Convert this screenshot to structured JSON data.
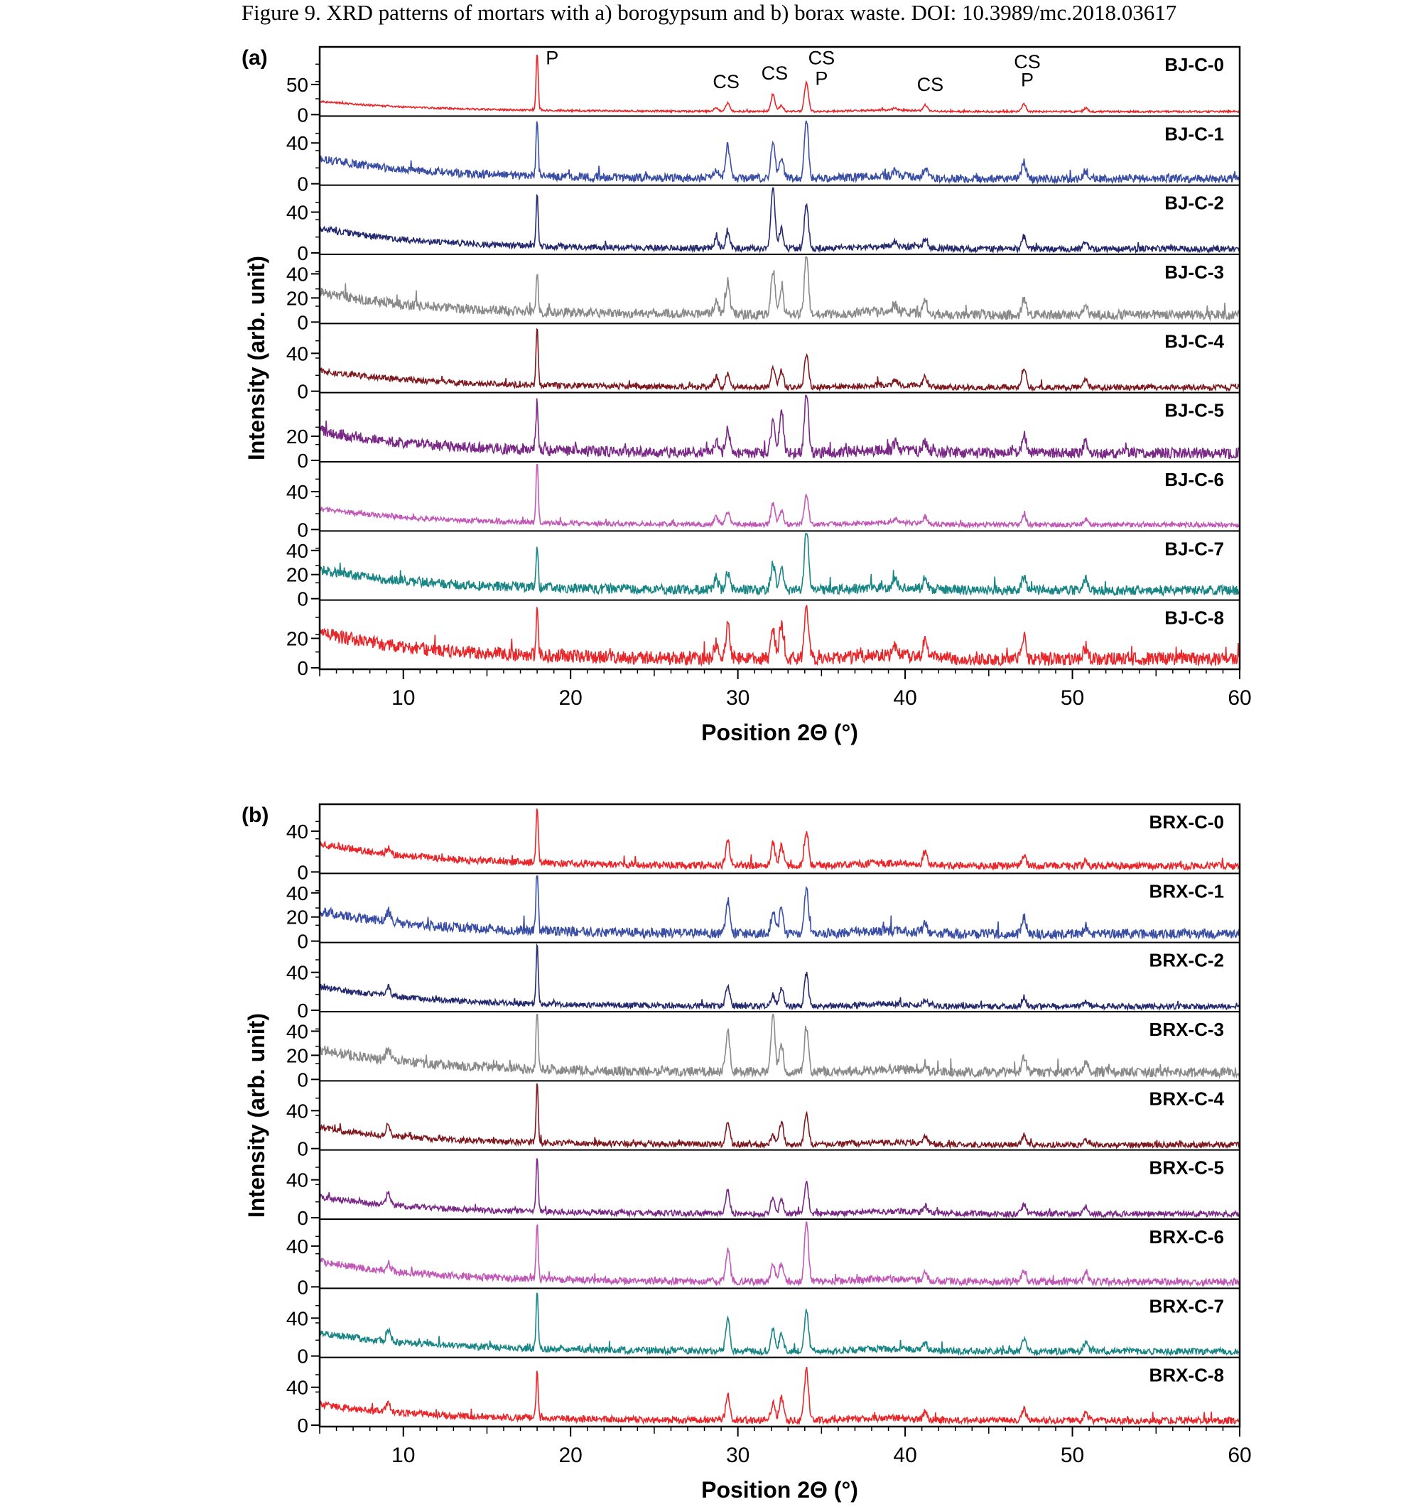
{
  "caption": "Figure 9.    XRD patterns of mortars with a) borogypsum and b) borax waste. DOI: 10.3989/mc.2018.03617",
  "chart_data": [
    {
      "type": "line",
      "panel_label": "(a)",
      "xlabel": "Position 2Θ (°)",
      "ylabel": "Intensity (arb. unit)",
      "xlim": [
        5,
        60
      ],
      "xticks": [
        10,
        20,
        30,
        40,
        50,
        60
      ],
      "grid": false,
      "peaks": [
        18.0,
        28.7,
        29.4,
        32.1,
        32.6,
        34.1,
        39.4,
        41.2,
        47.1,
        50.8
      ],
      "annotations": [
        {
          "text": "P",
          "x": 18.9,
          "y_frac": 0.78
        },
        {
          "text": "CS",
          "x": 29.3,
          "y_frac": 0.42
        },
        {
          "text": "CS",
          "x": 32.2,
          "y_frac": 0.55
        },
        {
          "text": "CS",
          "x": 35.0,
          "y_frac": 0.78
        },
        {
          "text": "P",
          "x": 35.0,
          "y_frac": 0.47
        },
        {
          "text": "CS",
          "x": 41.5,
          "y_frac": 0.38
        },
        {
          "text": "CS",
          "x": 47.3,
          "y_frac": 0.72
        },
        {
          "text": "P",
          "x": 47.3,
          "y_frac": 0.45
        }
      ],
      "series": [
        {
          "name": "BJ-C-0",
          "color": "#e8272b",
          "ymax": 110,
          "yticks": [
            0,
            50
          ],
          "baseline": 5,
          "bg_start": 22,
          "noise": 3,
          "peak_heights": [
            95,
            6,
            14,
            28,
            10,
            48,
            4,
            10,
            12,
            6
          ]
        },
        {
          "name": "BJ-C-1",
          "color": "#3a4fa3",
          "ymax": 65,
          "yticks": [
            0,
            40
          ],
          "baseline": 5,
          "bg_start": 25,
          "noise": 8,
          "peak_heights": [
            55,
            8,
            32,
            38,
            22,
            55,
            5,
            8,
            16,
            8
          ]
        },
        {
          "name": "BJ-C-2",
          "color": "#252a6e",
          "ymax": 65,
          "yticks": [
            0,
            40
          ],
          "baseline": 4,
          "bg_start": 24,
          "noise": 6,
          "peak_heights": [
            50,
            10,
            16,
            62,
            20,
            45,
            4,
            8,
            12,
            8
          ]
        },
        {
          "name": "BJ-C-3",
          "color": "#8a8a8a",
          "ymax": 55,
          "yticks": [
            0,
            20,
            40
          ],
          "baseline": 6,
          "bg_start": 25,
          "noise": 8,
          "peak_heights": [
            30,
            12,
            28,
            38,
            22,
            50,
            6,
            10,
            14,
            8
          ]
        },
        {
          "name": "BJ-C-4",
          "color": "#7e1a1f",
          "ymax": 70,
          "yticks": [
            0,
            40
          ],
          "baseline": 4,
          "bg_start": 22,
          "noise": 6,
          "peak_heights": [
            62,
            10,
            14,
            20,
            18,
            35,
            6,
            10,
            22,
            8
          ]
        },
        {
          "name": "BJ-C-5",
          "color": "#7a2a86",
          "ymax": 55,
          "yticks": [
            0,
            20
          ],
          "baseline": 6,
          "bg_start": 25,
          "noise": 9,
          "peak_heights": [
            40,
            10,
            20,
            28,
            35,
            50,
            6,
            8,
            16,
            10
          ]
        },
        {
          "name": "BJ-C-6",
          "color": "#c15ab7",
          "ymax": 70,
          "yticks": [
            0,
            40
          ],
          "baseline": 5,
          "bg_start": 22,
          "noise": 5,
          "peak_heights": [
            68,
            8,
            14,
            22,
            15,
            32,
            4,
            8,
            10,
            6
          ]
        },
        {
          "name": "BJ-C-7",
          "color": "#1a8585",
          "ymax": 55,
          "yticks": [
            0,
            20,
            40
          ],
          "baseline": 7,
          "bg_start": 24,
          "noise": 8,
          "peak_heights": [
            35,
            10,
            14,
            22,
            20,
            52,
            8,
            10,
            12,
            10
          ]
        },
        {
          "name": "BJ-C-8",
          "color": "#e8272b",
          "ymax": 45,
          "yticks": [
            0,
            20
          ],
          "baseline": 6,
          "bg_start": 24,
          "noise": 9,
          "peak_heights": [
            32,
            10,
            22,
            20,
            24,
            35,
            6,
            12,
            16,
            8
          ]
        }
      ]
    },
    {
      "type": "line",
      "panel_label": "(b)",
      "xlabel": "Position 2Θ (°)",
      "ylabel": "Intensity (arb. unit)",
      "xlim": [
        5,
        60
      ],
      "xticks": [
        10,
        20,
        30,
        40,
        50,
        60
      ],
      "grid": false,
      "peaks": [
        9.1,
        18.0,
        29.4,
        32.1,
        32.6,
        34.1,
        41.2,
        47.1,
        50.8
      ],
      "series": [
        {
          "name": "BRX-C-0",
          "color": "#e8272b",
          "ymax": 65,
          "yticks": [
            0,
            40
          ],
          "baseline": 6,
          "bg_start": 28,
          "noise": 7,
          "peak_heights": [
            6,
            55,
            24,
            22,
            20,
            34,
            14,
            10,
            6
          ]
        },
        {
          "name": "BRX-C-1",
          "color": "#3a4fa3",
          "ymax": 55,
          "yticks": [
            0,
            20,
            40
          ],
          "baseline": 6,
          "bg_start": 25,
          "noise": 8,
          "peak_heights": [
            8,
            55,
            26,
            18,
            20,
            38,
            8,
            14,
            6
          ]
        },
        {
          "name": "BRX-C-2",
          "color": "#252a6e",
          "ymax": 70,
          "yticks": [
            0,
            40
          ],
          "baseline": 4,
          "bg_start": 25,
          "noise": 6,
          "peak_heights": [
            10,
            62,
            22,
            12,
            20,
            34,
            6,
            10,
            6
          ]
        },
        {
          "name": "BRX-C-3",
          "color": "#8a8a8a",
          "ymax": 55,
          "yticks": [
            0,
            20,
            40
          ],
          "baseline": 6,
          "bg_start": 25,
          "noise": 8,
          "peak_heights": [
            10,
            50,
            34,
            48,
            22,
            38,
            6,
            12,
            10
          ]
        },
        {
          "name": "BRX-C-4",
          "color": "#7e1a1f",
          "ymax": 70,
          "yticks": [
            0,
            40
          ],
          "baseline": 4,
          "bg_start": 22,
          "noise": 6,
          "peak_heights": [
            12,
            62,
            24,
            10,
            24,
            34,
            8,
            10,
            6
          ]
        },
        {
          "name": "BRX-C-5",
          "color": "#7a2a86",
          "ymax": 70,
          "yticks": [
            0,
            40
          ],
          "baseline": 4,
          "bg_start": 22,
          "noise": 6,
          "peak_heights": [
            12,
            58,
            24,
            18,
            14,
            32,
            8,
            10,
            8
          ]
        },
        {
          "name": "BRX-C-6",
          "color": "#c15ab7",
          "ymax": 65,
          "yticks": [
            0,
            40
          ],
          "baseline": 5,
          "bg_start": 25,
          "noise": 7,
          "peak_heights": [
            8,
            55,
            30,
            16,
            18,
            60,
            10,
            12,
            10
          ]
        },
        {
          "name": "BRX-C-7",
          "color": "#1a8585",
          "ymax": 70,
          "yticks": [
            0,
            40
          ],
          "baseline": 5,
          "bg_start": 25,
          "noise": 7,
          "peak_heights": [
            12,
            62,
            34,
            22,
            20,
            42,
            8,
            12,
            10
          ]
        },
        {
          "name": "BRX-C-8",
          "color": "#e8272b",
          "ymax": 70,
          "yticks": [
            0,
            40
          ],
          "baseline": 5,
          "bg_start": 22,
          "noise": 7,
          "peak_heights": [
            10,
            50,
            28,
            18,
            24,
            55,
            8,
            12,
            8
          ]
        }
      ]
    }
  ]
}
